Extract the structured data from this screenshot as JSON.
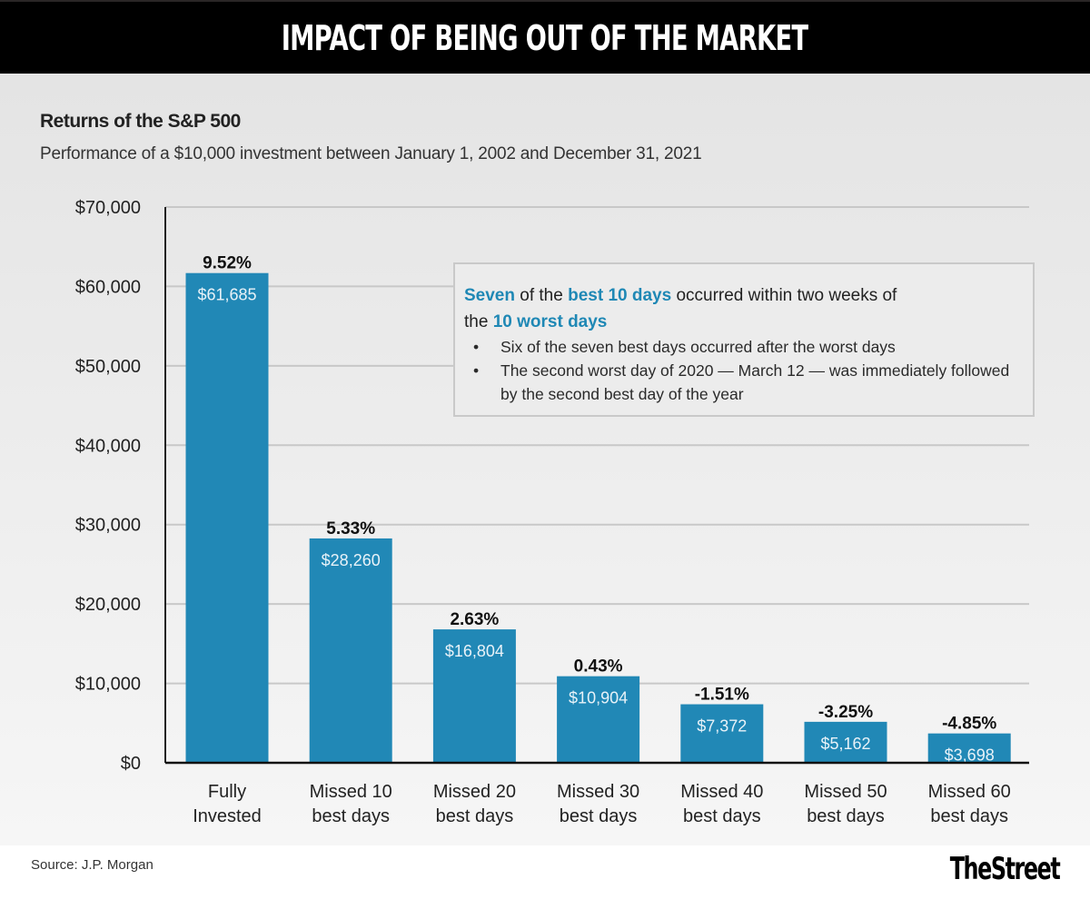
{
  "header": {
    "title": "IMPACT OF BEING OUT OF THE MARKET"
  },
  "callout": {
    "line1_hl1": "Seven",
    "line1_mid": " of the ",
    "line1_hl2": "best 10 days",
    "line1_end": " occurred within two weeks of",
    "line2_start": "the ",
    "line2_hl": "10 worst days",
    "bullets": [
      "Six of the seven best days occurred after the worst days",
      "The second worst day of 2020 — March 12 — was immediately followed by the second best day of the year"
    ]
  },
  "footer": {
    "source": "Source: J.P. Morgan",
    "logo": "TheStreet"
  },
  "colors": {
    "bar": "#2188b6",
    "accent": "#1f88b5"
  },
  "chart_data": {
    "type": "bar",
    "title": "Returns of the S&P 500",
    "subtitle": "Performance of a $10,000 investment between January 1, 2002 and December 31, 2021",
    "xlabel": "",
    "ylabel": "",
    "ylim": [
      0,
      70000
    ],
    "yticks": [
      0,
      10000,
      20000,
      30000,
      40000,
      50000,
      60000,
      70000
    ],
    "ytick_labels": [
      "$0",
      "$10,000",
      "$20,000",
      "$30,000",
      "$40,000",
      "$50,000",
      "$60,000",
      "$70,000"
    ],
    "grid": true,
    "categories": [
      [
        "Fully",
        "Invested"
      ],
      [
        "Missed 10",
        "best days"
      ],
      [
        "Missed 20",
        "best days"
      ],
      [
        "Missed 30",
        "best days"
      ],
      [
        "Missed 40",
        "best days"
      ],
      [
        "Missed 50",
        "best days"
      ],
      [
        "Missed 60",
        "best days"
      ]
    ],
    "values": [
      61685,
      28260,
      16804,
      10904,
      7372,
      5162,
      3698
    ],
    "value_labels": [
      "$61,685",
      "$28,260",
      "$16,804",
      "$10,904",
      "$7,372",
      "$5,162",
      "$3,698"
    ],
    "return_labels": [
      "9.52%",
      "5.33%",
      "2.63%",
      "0.43%",
      "-1.51%",
      "-3.25%",
      "-4.85%"
    ]
  }
}
